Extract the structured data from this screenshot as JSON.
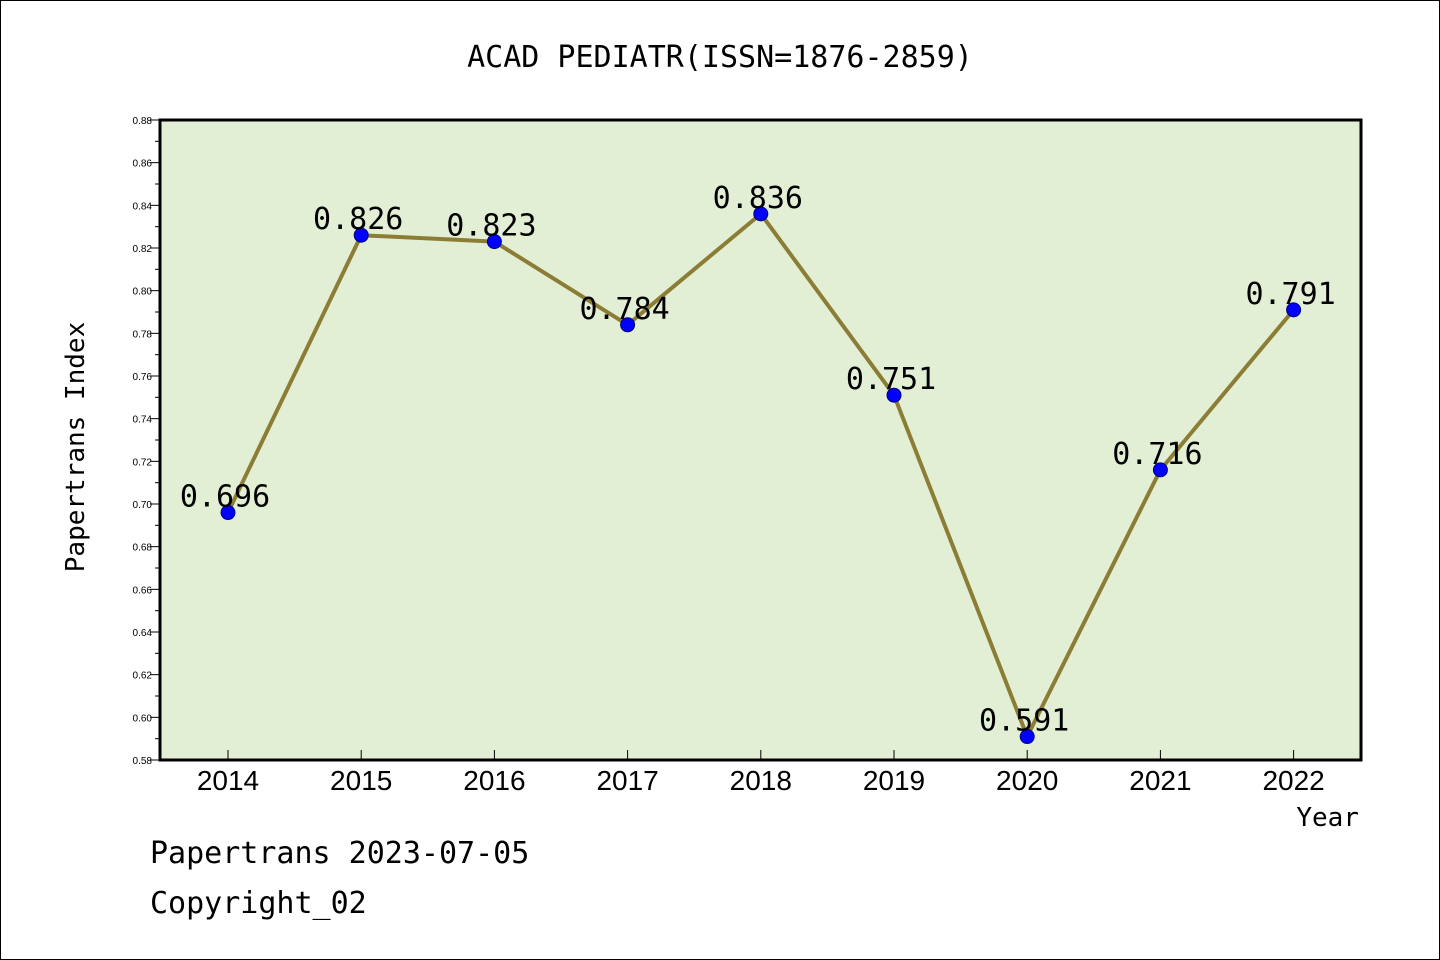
{
  "chart_data": {
    "type": "line",
    "title": "ACAD PEDIATR(ISSN=1876-2859)",
    "xlabel": "Year",
    "ylabel": "Papertrans Index",
    "categories": [
      "2014",
      "2015",
      "2016",
      "2017",
      "2018",
      "2019",
      "2020",
      "2021",
      "2022"
    ],
    "series": [
      {
        "values": [
          0.696,
          0.826,
          0.823,
          0.784,
          0.836,
          0.751,
          0.591,
          0.716,
          0.791
        ]
      }
    ],
    "data_labels": [
      "0.696",
      "0.826",
      "0.823",
      "0.784",
      "0.836",
      "0.751",
      "0.591",
      "0.716",
      "0.791"
    ],
    "ylim": [
      0.58,
      0.88
    ],
    "yticks": [
      "0.58",
      "0.60",
      "0.62",
      "0.64",
      "0.66",
      "0.68",
      "0.70",
      "0.72",
      "0.74",
      "0.76",
      "0.78",
      "0.80",
      "0.82",
      "0.84",
      "0.86",
      "0.88"
    ],
    "grid": false,
    "colors": {
      "plot_background": "#e2efd5",
      "line": "#8b7d35",
      "marker": "#0000ff"
    }
  },
  "footer": {
    "source": "Papertrans 2023-07-05",
    "copyright": "Copyright_02"
  }
}
